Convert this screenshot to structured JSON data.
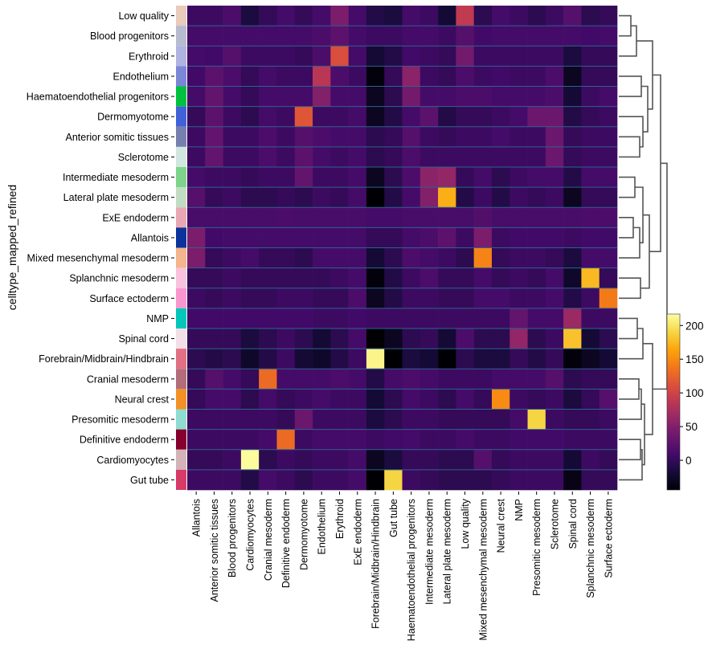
{
  "chart_data": {
    "type": "heatmap",
    "title": "",
    "xlabel": "",
    "ylabel": "celltype_mapped_refined",
    "rows": [
      "Low quality",
      "Blood progenitors",
      "Erythroid",
      "Endothelium",
      "Haematoendothelial progenitors",
      "Dermomyotome",
      "Anterior somitic tissues",
      "Sclerotome",
      "Intermediate mesoderm",
      "Lateral plate mesoderm",
      "ExE endoderm",
      "Allantois",
      "Mixed mesenchymal mesoderm",
      "Splanchnic mesoderm",
      "Surface ectoderm",
      "NMP",
      "Spinal cord",
      "Forebrain/Midbrain/Hindbrain",
      "Cranial mesoderm",
      "Neural crest",
      "Presomitic mesoderm",
      "Definitive endoderm",
      "Cardiomyocytes",
      "Gut tube"
    ],
    "columns": [
      "Allantois",
      "Anterior somitic tissues",
      "Blood progenitors",
      "Cardiomyocytes",
      "Cranial mesoderm",
      "Definitive endoderm",
      "Dermomyotome",
      "Endothelium",
      "Erythroid",
      "ExE endoderm",
      "Forebrain/Midbrain/Hindbrain",
      "Gut tube",
      "Haematoendothelial progenitors",
      "Intermediate mesoderm",
      "Lateral plate mesoderm",
      "Low quality",
      "Mixed mesenchymal mesoderm",
      "Neural crest",
      "NMP",
      "Presomitic mesoderm",
      "Sclerotome",
      "Spinal cord",
      "Splanchnic mesoderm",
      "Surface ectoderm"
    ],
    "row_colors": [
      "#e8cbba",
      "#b6bbcf",
      "#aeb3e0",
      "#7a86d6",
      "#00c13f",
      "#4161d9",
      "#7680ae",
      "#d1e6df",
      "#7dd38a",
      "#c2dcc3",
      "#e8a8b3",
      "#0a349c",
      "#f2b58c",
      "#f8c2df",
      "#fa96cf",
      "#00c7b9",
      "#f3dfe8",
      "#e27084",
      "#b36c7a",
      "#f39127",
      "#8fdcd0",
      "#87002e",
      "#d3b3b8",
      "#d83a67"
    ],
    "values": [
      [
        5,
        5,
        15,
        -15,
        0,
        10,
        0,
        10,
        45,
        10,
        -10,
        -15,
        10,
        5,
        -20,
        90,
        -5,
        10,
        5,
        -5,
        5,
        20,
        -5,
        0
      ],
      [
        10,
        10,
        10,
        10,
        10,
        10,
        10,
        15,
        25,
        10,
        5,
        5,
        10,
        10,
        5,
        20,
        8,
        10,
        10,
        10,
        10,
        10,
        8,
        10
      ],
      [
        10,
        8,
        20,
        5,
        5,
        5,
        0,
        15,
        110,
        10,
        -20,
        -10,
        8,
        5,
        0,
        40,
        5,
        5,
        5,
        5,
        5,
        -15,
        0,
        0
      ],
      [
        8,
        25,
        15,
        0,
        10,
        5,
        5,
        85,
        15,
        5,
        -40,
        0,
        55,
        5,
        0,
        15,
        5,
        8,
        5,
        5,
        15,
        -30,
        0,
        0
      ],
      [
        10,
        30,
        10,
        0,
        10,
        10,
        10,
        50,
        10,
        10,
        -30,
        -5,
        40,
        10,
        10,
        15,
        15,
        10,
        10,
        10,
        15,
        -20,
        5,
        10
      ],
      [
        0,
        25,
        5,
        -5,
        10,
        5,
        115,
        5,
        5,
        10,
        -30,
        -10,
        10,
        25,
        -10,
        0,
        0,
        5,
        10,
        35,
        35,
        -10,
        0,
        5
      ],
      [
        5,
        30,
        5,
        5,
        15,
        5,
        20,
        15,
        10,
        10,
        -5,
        0,
        20,
        5,
        0,
        5,
        5,
        10,
        5,
        5,
        35,
        0,
        5,
        5
      ],
      [
        5,
        30,
        5,
        5,
        15,
        5,
        25,
        10,
        5,
        10,
        -5,
        0,
        15,
        5,
        5,
        5,
        5,
        5,
        5,
        5,
        35,
        0,
        5,
        5
      ],
      [
        10,
        5,
        5,
        0,
        5,
        5,
        30,
        5,
        5,
        10,
        -30,
        -5,
        15,
        55,
        60,
        0,
        10,
        -5,
        5,
        10,
        10,
        -10,
        10,
        10
      ],
      [
        20,
        0,
        5,
        -5,
        -5,
        0,
        -5,
        5,
        0,
        10,
        -45,
        -10,
        10,
        50,
        170,
        -10,
        5,
        -10,
        5,
        0,
        5,
        -30,
        0,
        0
      ],
      [
        12,
        12,
        12,
        12,
        12,
        14,
        12,
        12,
        12,
        12,
        10,
        10,
        12,
        12,
        12,
        12,
        18,
        12,
        12,
        12,
        12,
        12,
        14,
        14
      ],
      [
        45,
        8,
        10,
        10,
        10,
        10,
        10,
        10,
        10,
        10,
        0,
        0,
        10,
        15,
        25,
        5,
        45,
        5,
        8,
        8,
        8,
        5,
        8,
        8
      ],
      [
        45,
        0,
        5,
        10,
        0,
        0,
        -5,
        10,
        10,
        10,
        -20,
        -5,
        15,
        10,
        5,
        -5,
        145,
        0,
        5,
        5,
        0,
        -15,
        10,
        10
      ],
      [
        0,
        0,
        5,
        0,
        0,
        0,
        0,
        0,
        5,
        10,
        -40,
        -10,
        5,
        15,
        0,
        0,
        10,
        0,
        5,
        0,
        10,
        -25,
        175,
        0
      ],
      [
        5,
        0,
        5,
        0,
        0,
        5,
        5,
        0,
        0,
        15,
        -30,
        -10,
        5,
        5,
        0,
        0,
        10,
        10,
        5,
        5,
        10,
        -10,
        5,
        140
      ],
      [
        8,
        8,
        8,
        8,
        8,
        8,
        8,
        5,
        5,
        8,
        5,
        5,
        5,
        5,
        5,
        5,
        5,
        5,
        30,
        10,
        10,
        65,
        5,
        5
      ],
      [
        0,
        0,
        0,
        -15,
        -5,
        5,
        -5,
        -20,
        -5,
        10,
        -45,
        -30,
        -5,
        0,
        -20,
        15,
        -5,
        -5,
        60,
        -5,
        5,
        180,
        -20,
        -5
      ],
      [
        -5,
        -10,
        -5,
        -25,
        -10,
        5,
        -20,
        -25,
        -10,
        5,
        210,
        -45,
        -15,
        -20,
        -45,
        -5,
        -15,
        -15,
        0,
        -10,
        0,
        -40,
        -30,
        -20
      ],
      [
        0,
        20,
        10,
        0,
        130,
        10,
        10,
        10,
        15,
        10,
        -10,
        10,
        15,
        10,
        5,
        5,
        5,
        10,
        10,
        10,
        20,
        -5,
        0,
        0
      ],
      [
        0,
        10,
        10,
        -5,
        10,
        0,
        5,
        10,
        5,
        5,
        -20,
        -5,
        10,
        5,
        -5,
        10,
        0,
        150,
        5,
        0,
        5,
        -15,
        0,
        20
      ],
      [
        5,
        5,
        5,
        5,
        5,
        0,
        35,
        5,
        5,
        5,
        -15,
        -5,
        5,
        5,
        0,
        0,
        0,
        0,
        10,
        190,
        5,
        0,
        0,
        5
      ],
      [
        5,
        5,
        5,
        5,
        10,
        130,
        5,
        10,
        10,
        10,
        5,
        8,
        10,
        5,
        5,
        10,
        5,
        5,
        8,
        8,
        8,
        5,
        5,
        5
      ],
      [
        0,
        0,
        5,
        215,
        -5,
        5,
        0,
        5,
        5,
        10,
        -30,
        -15,
        0,
        0,
        -5,
        -5,
        20,
        0,
        5,
        5,
        5,
        -20,
        5,
        0
      ],
      [
        5,
        5,
        5,
        -10,
        10,
        5,
        -5,
        5,
        5,
        10,
        -45,
        190,
        5,
        0,
        -5,
        -5,
        -5,
        0,
        5,
        5,
        5,
        -35,
        0,
        0
      ]
    ],
    "colormap": "inferno",
    "vlim": [
      -44,
      217
    ],
    "colorbar_ticks": [
      "0",
      "50",
      "100",
      "150",
      "200"
    ],
    "dendrogram": "right",
    "grid": false
  }
}
